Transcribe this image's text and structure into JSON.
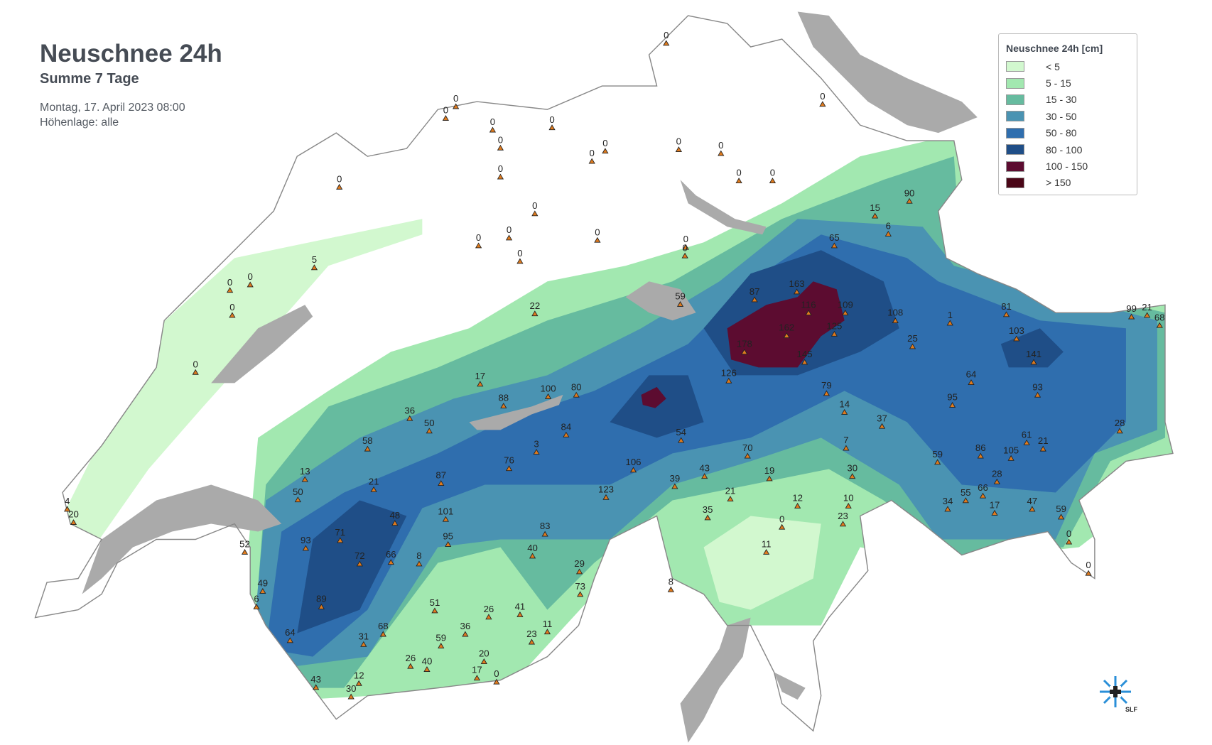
{
  "header": {
    "title": "Neuschnee 24h",
    "subtitle": "Summe 7 Tage",
    "date": "Montag, 17. April 2023 08:00",
    "elevation": "Höhenlage: alle"
  },
  "legend": {
    "title": "Neuschnee 24h [cm]",
    "classes": [
      {
        "label": "< 5",
        "color": "#d2f8cf"
      },
      {
        "label": "5 - 15",
        "color": "#a2e8b0"
      },
      {
        "label": "15 - 30",
        "color": "#66bb9f"
      },
      {
        "label": "30 - 50",
        "color": "#4a93b2"
      },
      {
        "label": "50 - 80",
        "color": "#2f6eae"
      },
      {
        "label": "80 - 100",
        "color": "#1f4e87"
      },
      {
        "label": "100 - 150",
        "color": "#5c0c30"
      },
      {
        "label": "> 150",
        "color": "#4a0617"
      }
    ]
  },
  "colors": {
    "lake": "#aaaaaa",
    "border": "#888888",
    "station_marker": "#e07b1e"
  },
  "stations": [
    "0",
    "0",
    "0",
    "0",
    "0",
    "0",
    "0",
    "0",
    "0",
    "0",
    "0",
    "0",
    "0",
    "0",
    "0",
    "0",
    "0",
    "0",
    "0",
    "0",
    "0",
    "5",
    "4",
    "20",
    "0",
    "0",
    "0",
    "0",
    "22",
    "59",
    "87",
    "163",
    "116",
    "109",
    "125",
    "178",
    "162",
    "145",
    "126",
    "108",
    "81",
    "103",
    "141",
    "99",
    "21",
    "68",
    "93",
    "95",
    "64",
    "59",
    "86",
    "105",
    "61",
    "21",
    "34",
    "55",
    "66",
    "17",
    "47",
    "59",
    "0",
    "0",
    "28",
    "28",
    "37",
    "7",
    "30",
    "10",
    "23",
    "12",
    "19",
    "0",
    "11",
    "14",
    "8",
    "35",
    "21",
    "39",
    "43",
    "54",
    "70",
    "84",
    "106",
    "80",
    "100",
    "88",
    "36",
    "50",
    "58",
    "13",
    "21",
    "50",
    "87",
    "48",
    "101",
    "95",
    "71",
    "72",
    "66",
    "8",
    "93",
    "89",
    "64",
    "6",
    "49",
    "52",
    "43",
    "12",
    "30",
    "31",
    "68",
    "26",
    "40",
    "59",
    "51",
    "36",
    "26",
    "41",
    "23",
    "11",
    "73",
    "29",
    "17",
    "0",
    "20",
    "40",
    "83",
    "123",
    "76",
    "3",
    "17",
    "79",
    "65",
    "15",
    "6",
    "90",
    "25",
    "1",
    "0"
  ],
  "logo": {
    "text": "SLF",
    "icon": "snowflake-cross-icon"
  }
}
